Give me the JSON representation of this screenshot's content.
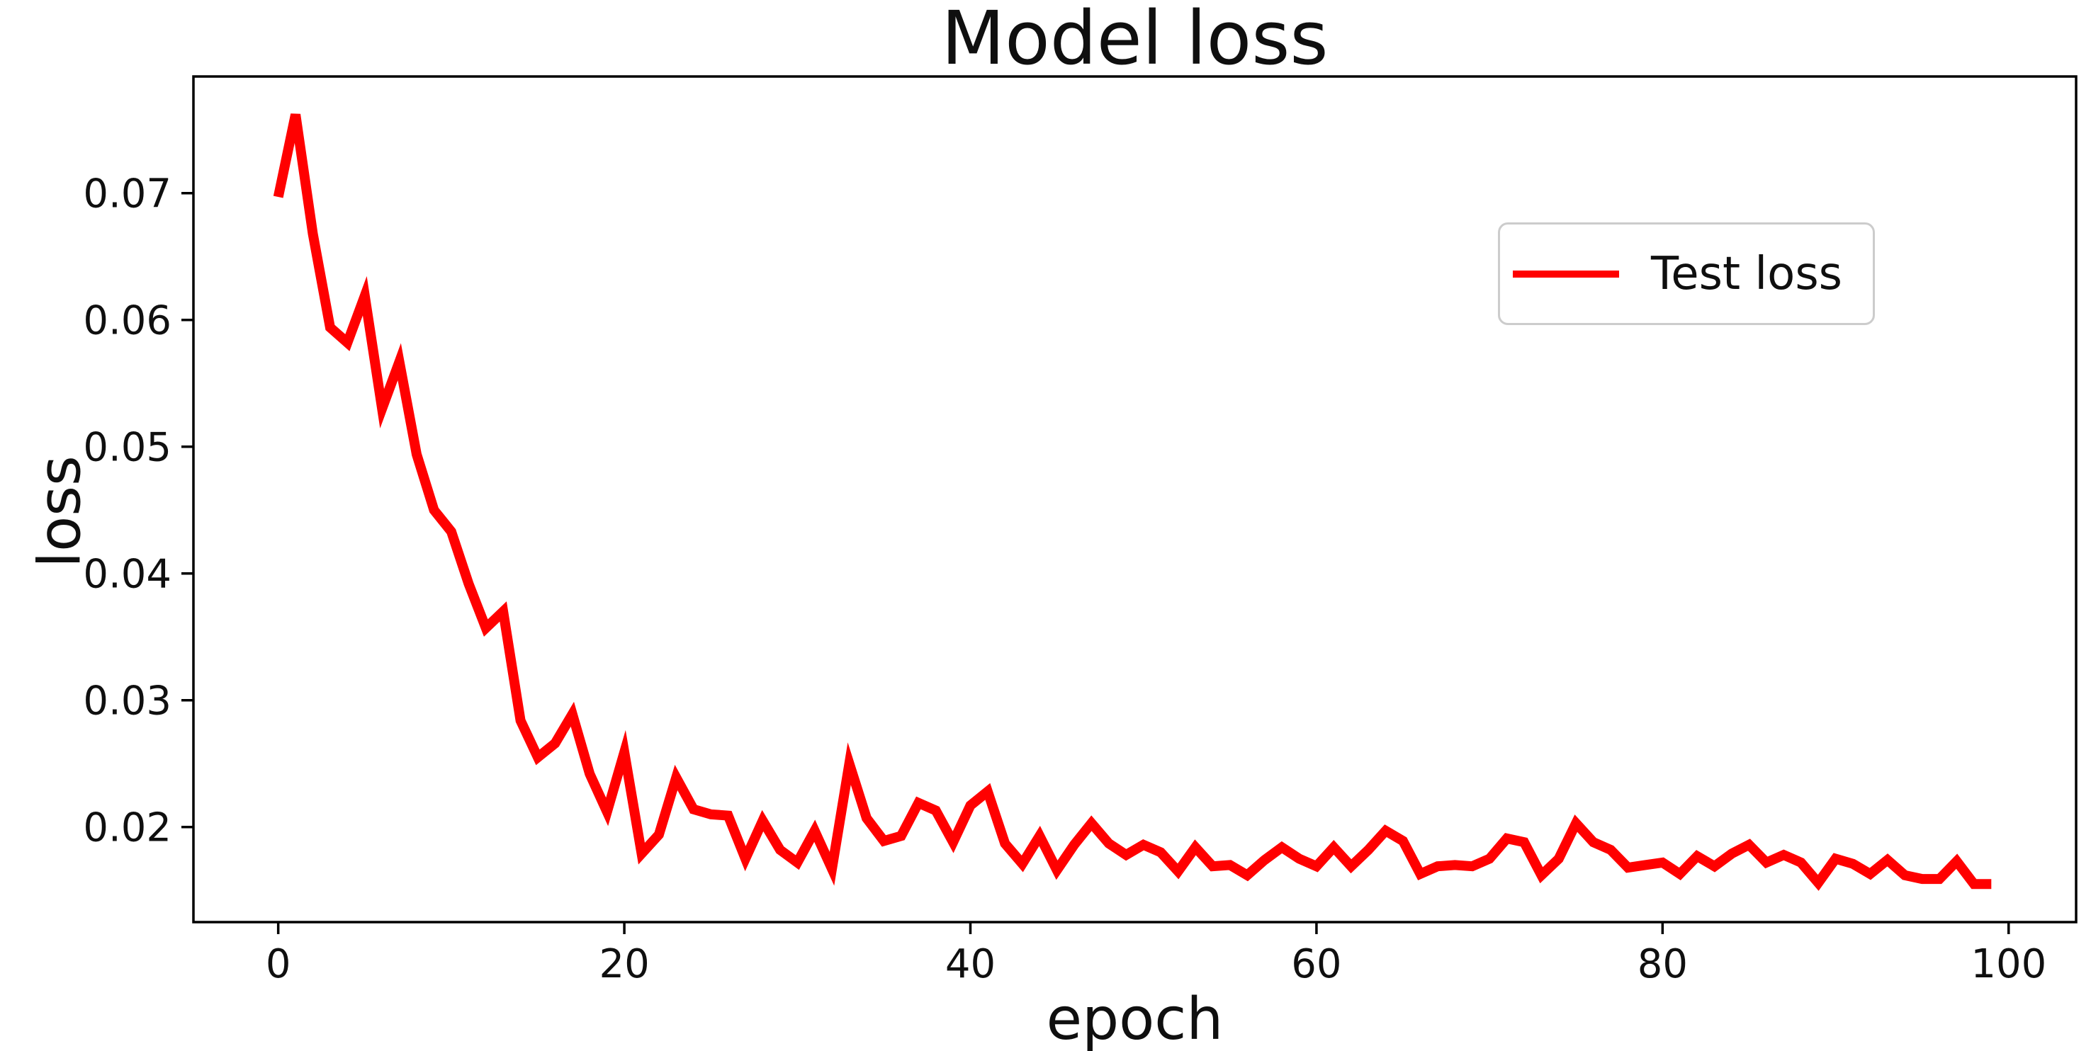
{
  "figure": {
    "title": "Model loss",
    "xlabel": "epoch",
    "ylabel": "loss",
    "legend": {
      "label": "Test loss",
      "line_color": "#ff0000"
    },
    "colors": {
      "line": "#ff0000",
      "spine": "#000000",
      "text": "#0f0f0f",
      "legend_border": "#cccccc",
      "background": "#ffffff"
    }
  },
  "chart_data": {
    "type": "line",
    "title": "Model loss",
    "xlabel": "epoch",
    "ylabel": "loss",
    "grid": false,
    "legend_position": "upper right",
    "xlim": [
      -4.9,
      103.9
    ],
    "ylim": [
      0.0125,
      0.0792
    ],
    "x_ticks": [
      0,
      20,
      40,
      60,
      80,
      100
    ],
    "y_ticks": [
      0.02,
      0.03,
      0.04,
      0.05,
      0.06,
      0.07
    ],
    "series": [
      {
        "name": "Test loss",
        "color": "#ff0000",
        "x": [
          0,
          1,
          2,
          3,
          4,
          5,
          6,
          7,
          8,
          9,
          10,
          11,
          12,
          13,
          14,
          15,
          16,
          17,
          18,
          19,
          20,
          21,
          22,
          23,
          24,
          25,
          26,
          27,
          28,
          29,
          30,
          31,
          32,
          33,
          34,
          35,
          36,
          37,
          38,
          39,
          40,
          41,
          42,
          43,
          44,
          45,
          46,
          47,
          48,
          49,
          50,
          51,
          52,
          53,
          54,
          55,
          56,
          57,
          58,
          59,
          60,
          61,
          62,
          63,
          64,
          65,
          66,
          67,
          68,
          69,
          70,
          71,
          72,
          73,
          74,
          75,
          76,
          77,
          78,
          79,
          80,
          81,
          82,
          83,
          84,
          85,
          86,
          87,
          88,
          89,
          90,
          91,
          92,
          93,
          94,
          95,
          96,
          97,
          98,
          99
        ],
        "y": [
          0.0697,
          0.0762,
          0.0668,
          0.0594,
          0.0582,
          0.0619,
          0.053,
          0.0567,
          0.0494,
          0.045,
          0.0433,
          0.0392,
          0.0357,
          0.037,
          0.0284,
          0.0255,
          0.0266,
          0.0289,
          0.0242,
          0.0212,
          0.0259,
          0.0179,
          0.0194,
          0.0239,
          0.0214,
          0.021,
          0.0209,
          0.0175,
          0.0205,
          0.0182,
          0.0172,
          0.0197,
          0.0167,
          0.025,
          0.0207,
          0.0189,
          0.0193,
          0.0219,
          0.0213,
          0.0188,
          0.0217,
          0.0228,
          0.0187,
          0.0171,
          0.0193,
          0.0166,
          0.0186,
          0.0203,
          0.0187,
          0.0178,
          0.0186,
          0.018,
          0.0165,
          0.0184,
          0.0169,
          0.017,
          0.0162,
          0.0174,
          0.0184,
          0.0175,
          0.0169,
          0.0184,
          0.0169,
          0.0182,
          0.0197,
          0.0189,
          0.0163,
          0.0169,
          0.017,
          0.0169,
          0.0175,
          0.0191,
          0.0188,
          0.0162,
          0.0175,
          0.0203,
          0.0188,
          0.0182,
          0.0168,
          0.017,
          0.0172,
          0.0163,
          0.0177,
          0.0169,
          0.0179,
          0.0186,
          0.0172,
          0.0178,
          0.0172,
          0.0156,
          0.0175,
          0.0171,
          0.0163,
          0.0174,
          0.0162,
          0.0159,
          0.0159,
          0.0173,
          0.0155,
          0.0155
        ]
      }
    ]
  }
}
